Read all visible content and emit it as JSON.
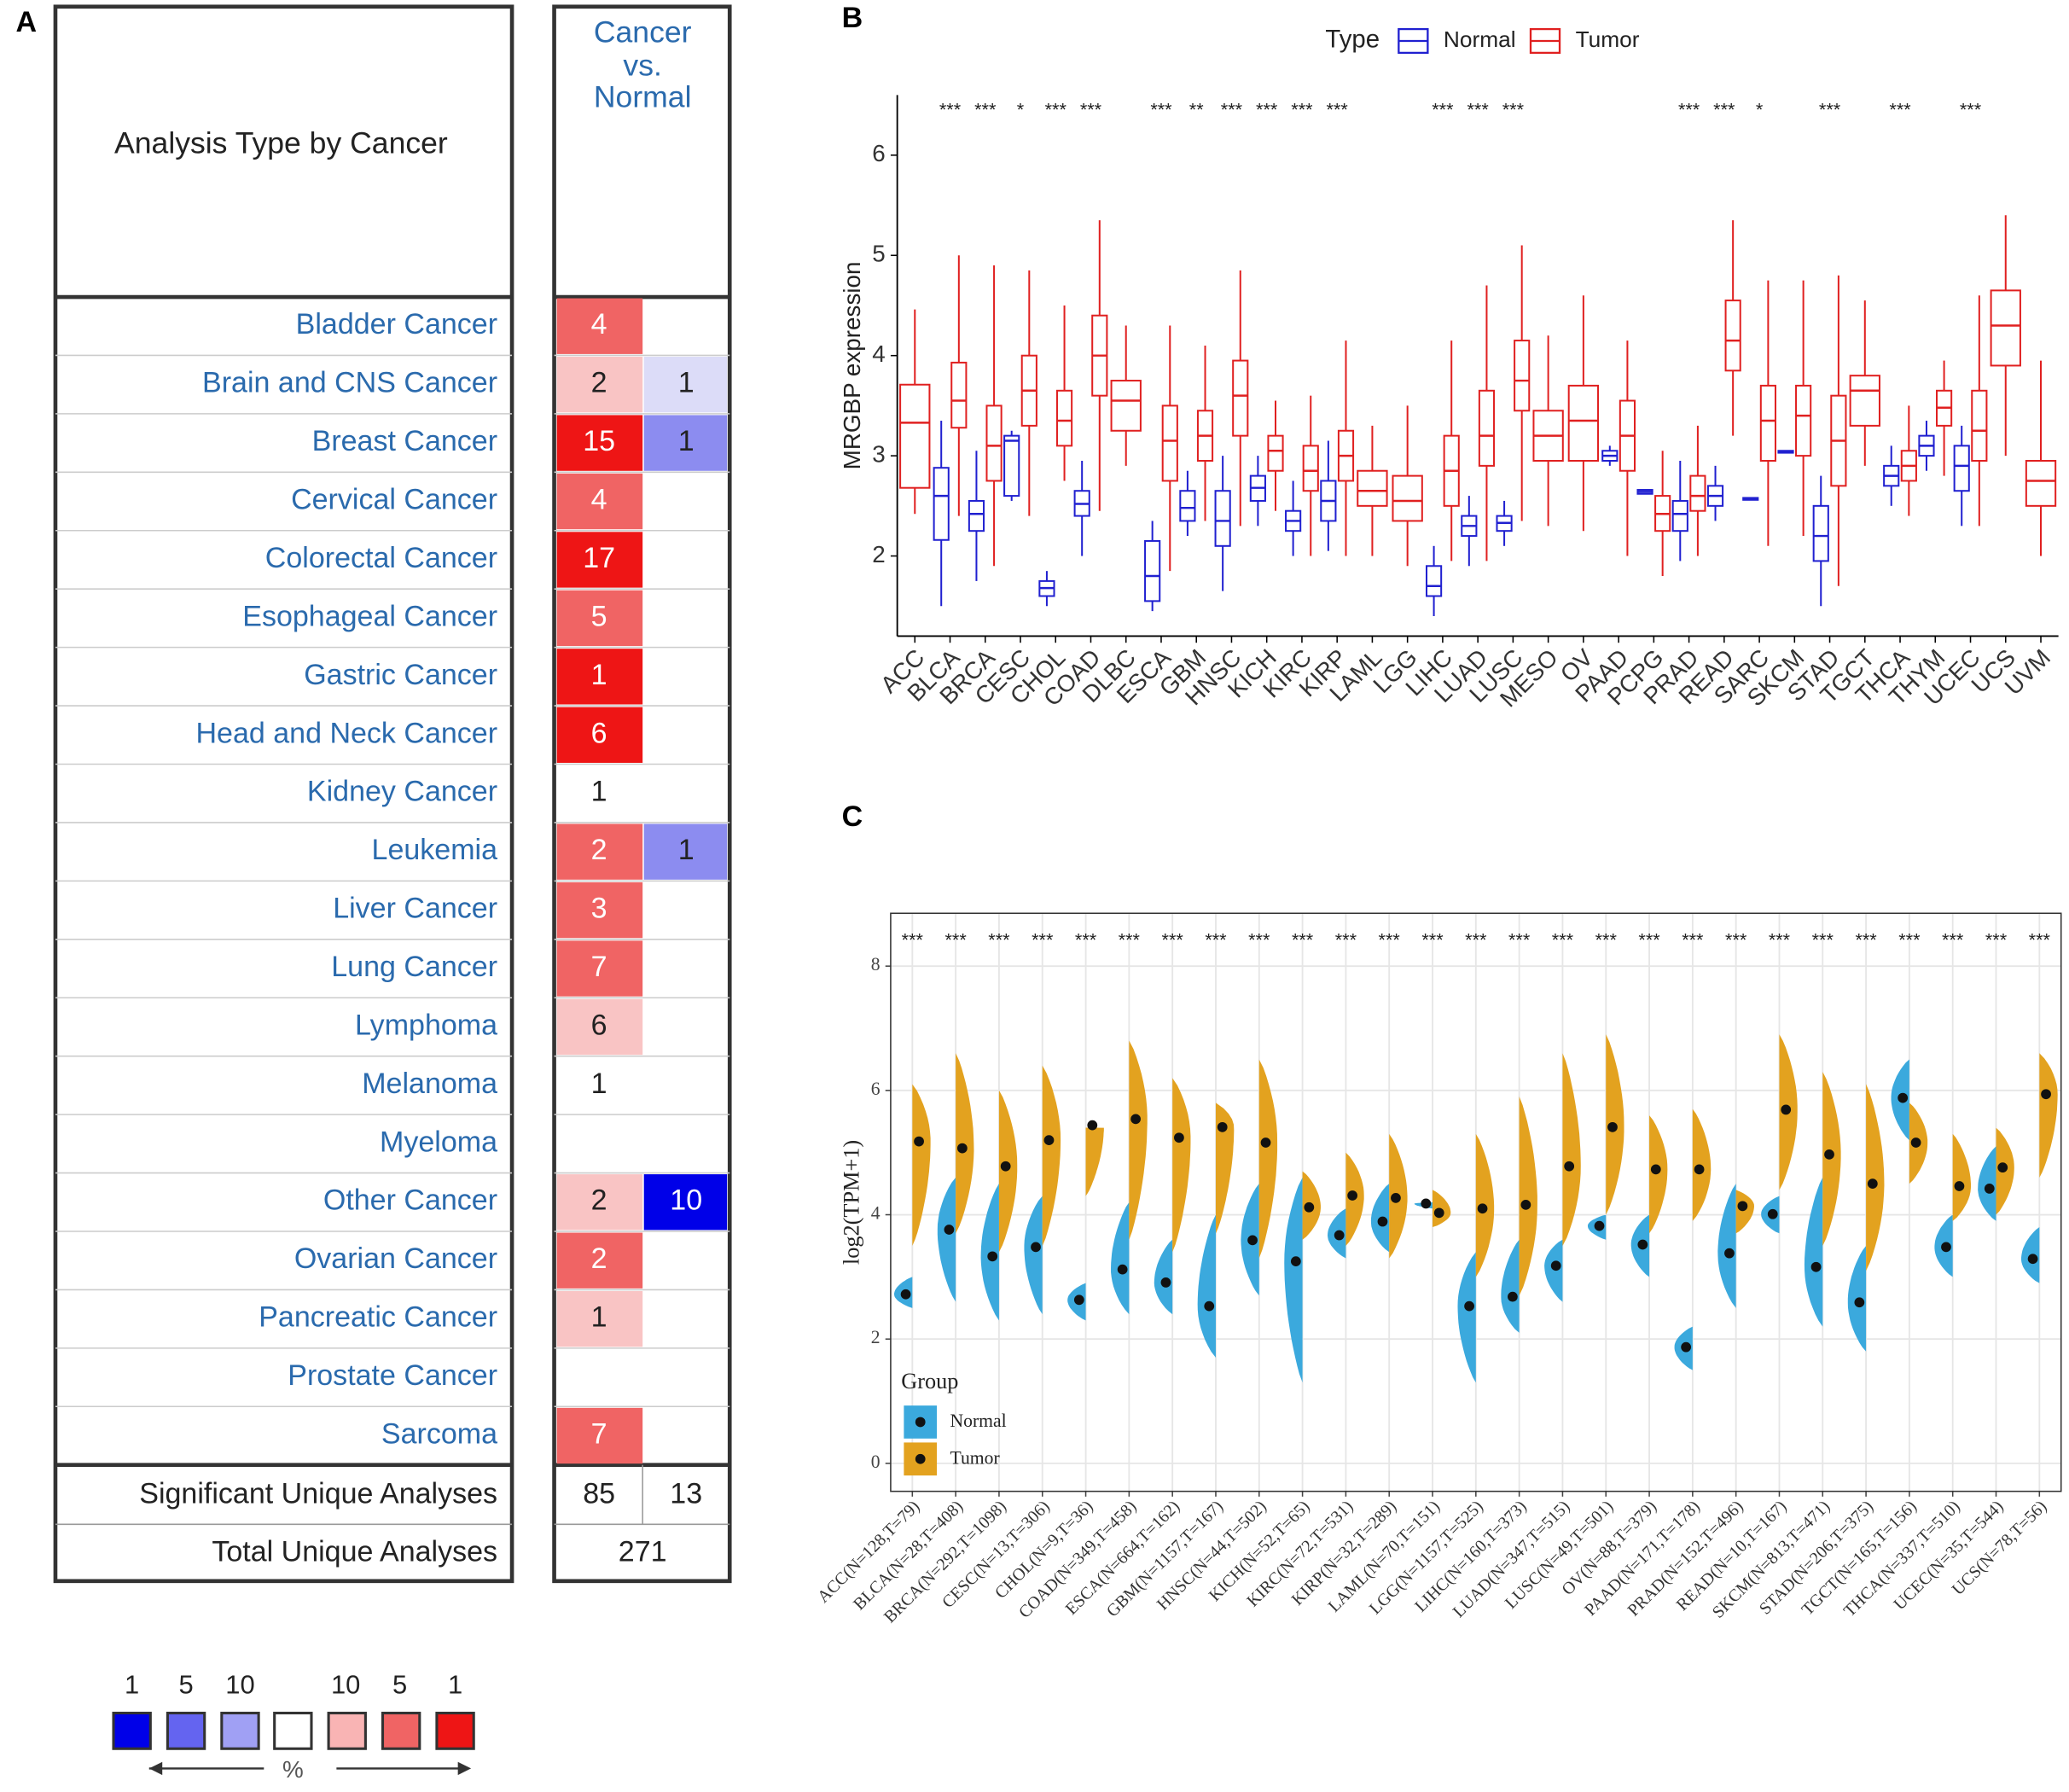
{
  "panel_labels": [
    "A",
    "B",
    "C"
  ],
  "table": {
    "header": {
      "label": "Analysis Type by Cancer",
      "comparison": [
        "Cancer",
        "vs.",
        "Normal"
      ]
    },
    "rows": [
      {
        "label": "Bladder Cancer",
        "over": 4,
        "over_color": "#f06464"
      },
      {
        "label": "Brain and CNS Cancer",
        "over": 2,
        "over_color": "#f9c4c4",
        "under": 1,
        "under_color": "#dcdcf8"
      },
      {
        "label": "Breast Cancer",
        "over": 15,
        "over_color": "#ee1515",
        "under": 1,
        "under_color": "#8c8cf0"
      },
      {
        "label": "Cervical Cancer",
        "over": 4,
        "over_color": "#f06464"
      },
      {
        "label": "Colorectal Cancer",
        "over": 17,
        "over_color": "#ee1515"
      },
      {
        "label": "Esophageal Cancer",
        "over": 5,
        "over_color": "#f06464"
      },
      {
        "label": "Gastric Cancer",
        "over": 1,
        "over_color": "#ee1515"
      },
      {
        "label": "Head and Neck Cancer",
        "over": 6,
        "over_color": "#ee1515"
      },
      {
        "label": "Kidney Cancer",
        "over": 1,
        "over_color": "#ffffff"
      },
      {
        "label": "Leukemia",
        "over": 2,
        "over_color": "#f06464",
        "under": 1,
        "under_color": "#8c8cf0"
      },
      {
        "label": "Liver Cancer",
        "over": 3,
        "over_color": "#f06464"
      },
      {
        "label": "Lung Cancer",
        "over": 7,
        "over_color": "#f06464"
      },
      {
        "label": "Lymphoma",
        "over": 6,
        "over_color": "#f9c4c4"
      },
      {
        "label": "Melanoma",
        "over": 1,
        "over_color": "#ffffff"
      },
      {
        "label": "Myeloma"
      },
      {
        "label": "Other Cancer",
        "over": 2,
        "over_color": "#f9c4c4",
        "under": 10,
        "under_color": "#0000e8"
      },
      {
        "label": "Ovarian Cancer",
        "over": 2,
        "over_color": "#f06464"
      },
      {
        "label": "Pancreatic Cancer",
        "over": 1,
        "over_color": "#f9c4c4"
      },
      {
        "label": "Prostate Cancer"
      },
      {
        "label": "Sarcoma",
        "over": 7,
        "over_color": "#f06464"
      }
    ],
    "significant": {
      "label": "Significant Unique Analyses",
      "over": 85,
      "under": 13
    },
    "total": {
      "label": "Total Unique Analyses",
      "value": 271
    },
    "legend": {
      "ranks": [
        1,
        5,
        10,
        10,
        5,
        1
      ],
      "colors": [
        "#0000e8",
        "#6464f0",
        "#a0a0f4",
        "#ffffff",
        "#f9b4b4",
        "#f06464",
        "#ee1515"
      ],
      "unit": "%"
    }
  },
  "chart_data": [
    {
      "type": "box",
      "y_label": "MRGBP expression",
      "legend_title": "Type",
      "legend": "top",
      "categories": [
        "ACC",
        "BLCA",
        "BRCA",
        "CESC",
        "CHOL",
        "COAD",
        "DLBC",
        "ESCA",
        "GBM",
        "HNSC",
        "KICH",
        "KIRC",
        "KIRP",
        "LAML",
        "LGG",
        "LIHC",
        "LUAD",
        "LUSC",
        "MESO",
        "OV",
        "PAAD",
        "PCPG",
        "PRAD",
        "READ",
        "SARC",
        "SKCM",
        "STAD",
        "TGCT",
        "THCA",
        "THYM",
        "UCEC",
        "UCS",
        "UVM"
      ],
      "significance": [
        null,
        "***",
        "***",
        "*",
        "***",
        "***",
        null,
        "***",
        "**",
        "***",
        "***",
        "***",
        "***",
        null,
        null,
        "***",
        "***",
        "***",
        null,
        null,
        null,
        null,
        "***",
        "***",
        "*",
        null,
        "***",
        null,
        "***",
        null,
        "***",
        null,
        null
      ],
      "ylim": [
        1.2,
        6.6
      ],
      "yticks": [
        2,
        3,
        4,
        5,
        6
      ],
      "series": [
        {
          "name": "Normal",
          "color": "#2020d0",
          "min": [
            null,
            1.5,
            1.75,
            2.55,
            1.5,
            2.0,
            null,
            1.45,
            2.2,
            1.65,
            2.3,
            2.0,
            2.05,
            null,
            null,
            1.4,
            1.9,
            2.1,
            null,
            null,
            2.9,
            2.62,
            1.95,
            2.35,
            2.56,
            3.03,
            1.5,
            null,
            2.5,
            2.85,
            2.3,
            null,
            null
          ],
          "q1": [
            null,
            2.16,
            2.25,
            2.6,
            1.6,
            2.4,
            null,
            1.55,
            2.35,
            2.1,
            2.55,
            2.25,
            2.35,
            null,
            null,
            1.6,
            2.2,
            2.25,
            null,
            null,
            2.95,
            2.62,
            2.25,
            2.5,
            2.56,
            3.03,
            1.95,
            null,
            2.7,
            3.0,
            2.65,
            null,
            null
          ],
          "median": [
            null,
            2.6,
            2.42,
            3.15,
            1.68,
            2.52,
            null,
            1.8,
            2.48,
            2.35,
            2.68,
            2.35,
            2.55,
            null,
            null,
            1.7,
            2.3,
            2.33,
            null,
            null,
            3.0,
            2.64,
            2.42,
            2.6,
            2.57,
            3.04,
            2.2,
            null,
            2.8,
            3.1,
            2.9,
            null,
            null
          ],
          "q3": [
            null,
            2.88,
            2.55,
            3.2,
            1.75,
            2.65,
            null,
            2.15,
            2.65,
            2.65,
            2.8,
            2.45,
            2.75,
            null,
            null,
            1.9,
            2.4,
            2.4,
            null,
            null,
            3.05,
            2.66,
            2.55,
            2.7,
            2.58,
            3.05,
            2.5,
            null,
            2.9,
            3.2,
            3.1,
            null,
            null
          ],
          "max": [
            null,
            3.35,
            3.05,
            3.25,
            1.85,
            2.95,
            null,
            2.35,
            2.85,
            3.0,
            3.0,
            2.75,
            3.15,
            null,
            null,
            2.1,
            2.6,
            2.55,
            null,
            null,
            3.1,
            2.66,
            2.95,
            2.9,
            2.58,
            3.05,
            2.8,
            null,
            3.1,
            3.35,
            3.3,
            null,
            null
          ]
        },
        {
          "name": "Tumor",
          "color": "#e02020",
          "min": [
            2.42,
            2.4,
            1.9,
            2.4,
            2.75,
            2.45,
            2.9,
            1.85,
            2.35,
            2.3,
            2.45,
            2.0,
            2.0,
            2.0,
            1.9,
            1.95,
            1.95,
            2.35,
            2.3,
            2.25,
            2.0,
            1.8,
            2.0,
            3.2,
            2.1,
            2.2,
            1.7,
            2.9,
            2.4,
            2.8,
            2.3,
            3.0,
            2.0
          ],
          "q1": [
            2.68,
            3.28,
            2.75,
            3.3,
            3.1,
            3.6,
            3.25,
            2.75,
            2.95,
            3.2,
            2.85,
            2.65,
            2.75,
            2.5,
            2.35,
            2.5,
            2.9,
            3.45,
            2.95,
            2.95,
            2.85,
            2.25,
            2.45,
            3.85,
            2.95,
            3.0,
            2.7,
            3.3,
            2.75,
            3.3,
            2.95,
            3.9,
            2.5
          ],
          "median": [
            3.33,
            3.55,
            3.1,
            3.65,
            3.35,
            4.0,
            3.55,
            3.15,
            3.2,
            3.6,
            3.05,
            2.85,
            3.0,
            2.65,
            2.55,
            2.85,
            3.2,
            3.75,
            3.2,
            3.35,
            3.2,
            2.42,
            2.6,
            4.15,
            3.35,
            3.4,
            3.15,
            3.65,
            2.9,
            3.48,
            3.25,
            4.3,
            2.75
          ],
          "q3": [
            3.71,
            3.93,
            3.5,
            4.0,
            3.65,
            4.4,
            3.75,
            3.5,
            3.45,
            3.95,
            3.2,
            3.1,
            3.25,
            2.85,
            2.8,
            3.2,
            3.65,
            4.15,
            3.45,
            3.7,
            3.55,
            2.6,
            2.8,
            4.55,
            3.7,
            3.7,
            3.6,
            3.8,
            3.05,
            3.65,
            3.65,
            4.65,
            2.95
          ],
          "max": [
            4.46,
            5.0,
            4.9,
            4.85,
            4.5,
            5.35,
            4.3,
            4.3,
            4.1,
            4.85,
            3.55,
            3.6,
            4.15,
            3.3,
            3.5,
            4.15,
            4.7,
            5.1,
            4.2,
            4.6,
            4.15,
            3.05,
            3.3,
            5.35,
            4.75,
            4.75,
            4.8,
            4.55,
            3.5,
            3.95,
            4.6,
            5.4,
            3.95
          ]
        }
      ]
    },
    {
      "type": "violin",
      "y_label": "log2(TPM+1)",
      "legend_title": "Group",
      "legend": "bottom-left",
      "grid": true,
      "categories": [
        "ACC(N=128,T=79)",
        "BLCA(N=28,T=408)",
        "BRCA(N=292,T=1098)",
        "CESC(N=13,T=306)",
        "CHOL(N=9,T=36)",
        "COAD(N=349,T=458)",
        "ESCA(N=664,T=162)",
        "GBM(N=1157,T=167)",
        "HNSC(N=44,T=502)",
        "KICH(N=52,T=65)",
        "KIRC(N=72,T=531)",
        "KIRP(N=32,T=289)",
        "LAML(N=70,T=151)",
        "LGG(N=1157,T=525)",
        "LIHC(N=160,T=373)",
        "LUAD(N=347,T=515)",
        "LUSC(N=49,T=501)",
        "OV(N=88,T=379)",
        "PAAD(N=171,T=178)",
        "PRAD(N=152,T=496)",
        "READ(N=10,T=167)",
        "SKCM(N=813,T=471)",
        "STAD(N=206,T=375)",
        "TGCT(N=165,T=156)",
        "THCA(N=337,T=510)",
        "UCEC(N=35,T=544)",
        "UCS(N=78,T=56)"
      ],
      "significance": [
        "***",
        "***",
        "***",
        "***",
        "***",
        "***",
        "***",
        "***",
        "***",
        "***",
        "***",
        "***",
        "***",
        "***",
        "***",
        "***",
        "***",
        "***",
        "***",
        "***",
        "***",
        "***",
        "***",
        "***",
        "***",
        "***",
        "***"
      ],
      "ylim": [
        -0.45,
        8.85
      ],
      "yticks": [
        0,
        2,
        4,
        6,
        8
      ],
      "series": [
        {
          "name": "Normal",
          "color": "#3ba9dd",
          "values": [
            2.72,
            3.76,
            3.33,
            3.48,
            2.63,
            3.12,
            2.91,
            2.53,
            3.59,
            3.25,
            3.67,
            3.89,
            4.18,
            2.53,
            2.68,
            3.18,
            3.82,
            3.52,
            1.87,
            3.38,
            4.01,
            3.16,
            2.59,
            5.88,
            3.48,
            4.42,
            3.29
          ],
          "low": [
            2.5,
            2.6,
            2.3,
            2.4,
            2.3,
            2.4,
            2.4,
            1.7,
            2.7,
            1.3,
            3.3,
            3.4,
            4.1,
            1.3,
            2.1,
            2.6,
            3.6,
            3.0,
            1.5,
            2.5,
            3.7,
            2.2,
            1.8,
            5.2,
            3.0,
            3.9,
            2.9
          ],
          "high": [
            3.0,
            4.6,
            4.5,
            4.3,
            2.9,
            4.2,
            3.6,
            4.0,
            4.5,
            4.6,
            4.1,
            4.5,
            4.2,
            3.4,
            3.6,
            3.6,
            4.0,
            4.0,
            2.2,
            4.5,
            4.3,
            4.6,
            3.5,
            6.5,
            4.0,
            5.1,
            3.8
          ]
        },
        {
          "name": "Tumor",
          "color": "#e3a21f",
          "values": [
            5.18,
            5.07,
            4.78,
            5.2,
            5.44,
            5.54,
            5.24,
            5.41,
            5.16,
            4.12,
            4.31,
            4.27,
            4.03,
            4.1,
            4.16,
            4.78,
            5.41,
            4.73,
            4.73,
            4.14,
            5.69,
            4.97,
            4.5,
            5.16,
            4.46,
            4.76,
            5.94
          ],
          "low": [
            3.5,
            3.7,
            3.4,
            3.5,
            4.3,
            3.6,
            3.4,
            3.7,
            3.3,
            3.6,
            3.5,
            3.3,
            3.8,
            3.0,
            2.7,
            3.5,
            4.0,
            3.7,
            3.9,
            3.7,
            4.4,
            3.5,
            3.1,
            4.5,
            3.9,
            4.0,
            4.6
          ],
          "high": [
            6.1,
            6.6,
            6.0,
            6.4,
            5.4,
            6.8,
            6.2,
            5.8,
            6.5,
            4.7,
            5.0,
            5.3,
            4.4,
            5.3,
            5.9,
            6.6,
            6.9,
            5.6,
            5.7,
            4.4,
            6.9,
            6.3,
            6.1,
            5.8,
            5.3,
            5.4,
            6.6
          ]
        }
      ]
    }
  ]
}
